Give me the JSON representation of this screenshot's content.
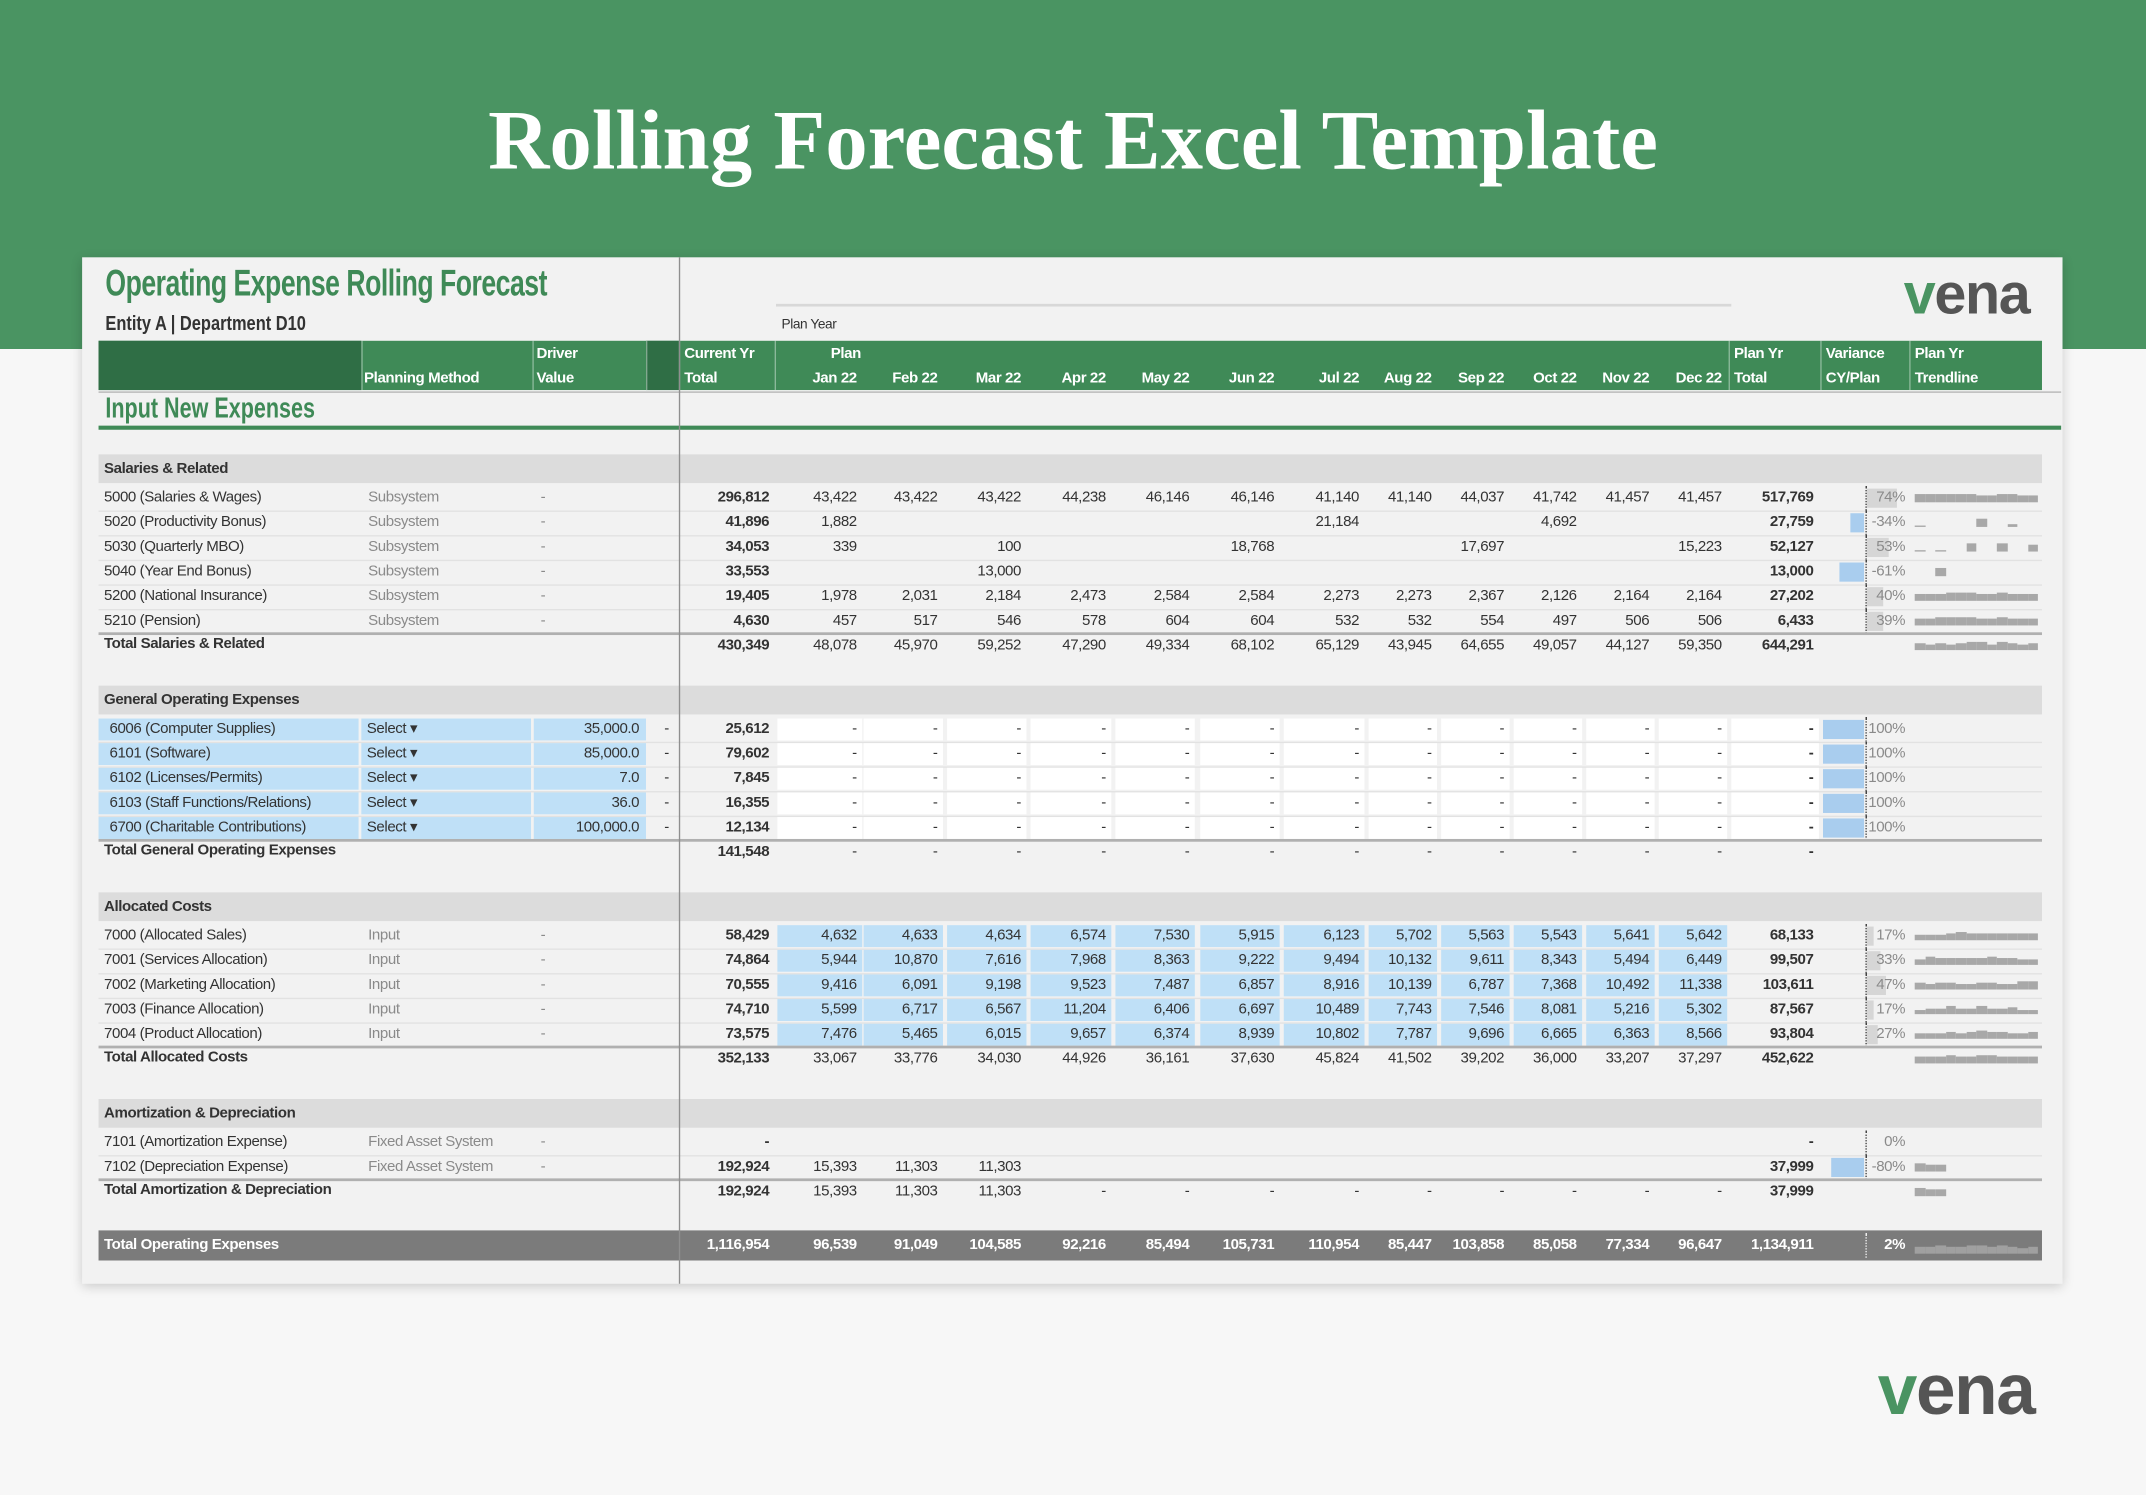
{
  "banner": {
    "title": "Rolling Forecast Excel Template"
  },
  "sheet": {
    "title": "Operating Expense Rolling Forecast",
    "subtitle": "Entity A | Department D10",
    "logo": "vena",
    "plan_year": "Plan Year",
    "section": "Input New Expenses",
    "header": {
      "planning_method": "Planning Method",
      "driver": [
        "Driver",
        "Value"
      ],
      "cy_total": [
        "Current Yr",
        "Total"
      ],
      "plan": "Plan",
      "months": [
        "Jan 22",
        "Feb 22",
        "Mar 22",
        "Apr 22",
        "May 22",
        "Jun 22",
        "Jul 22",
        "Aug 22",
        "Sep 22",
        "Oct 22",
        "Nov 22",
        "Dec 22"
      ],
      "plan_total": [
        "Plan Yr",
        "Total"
      ],
      "variance": [
        "Variance",
        "CY/Plan"
      ],
      "trendline": [
        "Plan Yr",
        "Trendline"
      ]
    },
    "groups": [
      {
        "name": "Salaries & Related",
        "rows": [
          {
            "account": "5000 (Salaries & Wages)",
            "method": "Subsystem",
            "driver": "-",
            "cy": "296,812",
            "months": [
              "43,422",
              "43,422",
              "43,422",
              "44,238",
              "46,146",
              "46,146",
              "41,140",
              "41,140",
              "44,037",
              "41,742",
              "41,457",
              "41,457"
            ],
            "plan": "517,769",
            "variance": "74%"
          },
          {
            "account": "5020 (Productivity Bonus)",
            "method": "Subsystem",
            "driver": "-",
            "cy": "41,896",
            "months": [
              "1,882",
              null,
              null,
              null,
              null,
              null,
              "21,184",
              null,
              null,
              "4,692",
              null,
              null
            ],
            "plan": "27,759",
            "variance": "-34%"
          },
          {
            "account": "5030 (Quarterly MBO)",
            "method": "Subsystem",
            "driver": "-",
            "cy": "34,053",
            "months": [
              "339",
              null,
              "100",
              null,
              null,
              "18,768",
              null,
              null,
              "17,697",
              null,
              null,
              "15,223"
            ],
            "plan": "52,127",
            "variance": "53%"
          },
          {
            "account": "5040 (Year End Bonus)",
            "method": "Subsystem",
            "driver": "-",
            "cy": "33,553",
            "months": [
              null,
              null,
              "13,000",
              null,
              null,
              null,
              null,
              null,
              null,
              null,
              null,
              null
            ],
            "plan": "13,000",
            "variance": "-61%"
          },
          {
            "account": "5200 (National Insurance)",
            "method": "Subsystem",
            "driver": "-",
            "cy": "19,405",
            "months": [
              "1,978",
              "2,031",
              "2,184",
              "2,473",
              "2,584",
              "2,584",
              "2,273",
              "2,273",
              "2,367",
              "2,126",
              "2,164",
              "2,164"
            ],
            "plan": "27,202",
            "variance": "40%"
          },
          {
            "account": "5210 (Pension)",
            "method": "Subsystem",
            "driver": "-",
            "cy": "4,630",
            "months": [
              "457",
              "517",
              "546",
              "578",
              "604",
              "604",
              "532",
              "532",
              "554",
              "497",
              "506",
              "506"
            ],
            "plan": "6,433",
            "variance": "39%"
          }
        ],
        "total": {
          "label": "Total Salaries & Related",
          "cy": "430,349",
          "months": [
            "48,078",
            "45,970",
            "59,252",
            "47,290",
            "49,334",
            "68,102",
            "65,129",
            "43,945",
            "64,655",
            "49,057",
            "44,127",
            "59,350"
          ],
          "plan": "644,291"
        }
      },
      {
        "name": "General Operating Expenses",
        "rows": [
          {
            "account": "6006 (Computer Supplies)",
            "method": "Select ▾",
            "driver": "35,000.0",
            "flag": "-",
            "cy": "25,612",
            "months": [
              "-",
              "-",
              "-",
              "-",
              "-",
              "-",
              "-",
              "-",
              "-",
              "-",
              "-",
              "-"
            ],
            "plan": "-",
            "variance": "100%"
          },
          {
            "account": "6101 (Software)",
            "method": "Select ▾",
            "driver": "85,000.0",
            "flag": "-",
            "cy": "79,602",
            "months": [
              "-",
              "-",
              "-",
              "-",
              "-",
              "-",
              "-",
              "-",
              "-",
              "-",
              "-",
              "-"
            ],
            "plan": "-",
            "variance": "100%"
          },
          {
            "account": "6102 (Licenses/Permits)",
            "method": "Select ▾",
            "driver": "7.0",
            "flag": "-",
            "cy": "7,845",
            "months": [
              "-",
              "-",
              "-",
              "-",
              "-",
              "-",
              "-",
              "-",
              "-",
              "-",
              "-",
              "-"
            ],
            "plan": "-",
            "variance": "100%"
          },
          {
            "account": "6103 (Staff Functions/Relations)",
            "method": "Select ▾",
            "driver": "36.0",
            "flag": "-",
            "cy": "16,355",
            "months": [
              "-",
              "-",
              "-",
              "-",
              "-",
              "-",
              "-",
              "-",
              "-",
              "-",
              "-",
              "-"
            ],
            "plan": "-",
            "variance": "100%"
          },
          {
            "account": "6700 (Charitable Contributions)",
            "method": "Select ▾",
            "driver": "100,000.0",
            "flag": "-",
            "cy": "12,134",
            "months": [
              "-",
              "-",
              "-",
              "-",
              "-",
              "-",
              "-",
              "-",
              "-",
              "-",
              "-",
              "-"
            ],
            "plan": "-",
            "variance": "100%"
          }
        ],
        "total": {
          "label": "Total General Operating Expenses",
          "cy": "141,548",
          "months": [
            "-",
            "-",
            "-",
            "-",
            "-",
            "-",
            "-",
            "-",
            "-",
            "-",
            "-",
            "-"
          ],
          "plan": "-"
        }
      },
      {
        "name": "Allocated Costs",
        "rows": [
          {
            "account": "7000 (Allocated Sales)",
            "method": "Input",
            "driver": "-",
            "cy": "58,429",
            "months": [
              "4,632",
              "4,633",
              "4,634",
              "6,574",
              "7,530",
              "5,915",
              "6,123",
              "5,702",
              "5,563",
              "5,543",
              "5,641",
              "5,642"
            ],
            "plan": "68,133",
            "variance": "17%"
          },
          {
            "account": "7001 (Services Allocation)",
            "method": "Input",
            "driver": "-",
            "cy": "74,864",
            "months": [
              "5,944",
              "10,870",
              "7,616",
              "7,968",
              "8,363",
              "9,222",
              "9,494",
              "10,132",
              "9,611",
              "8,343",
              "5,494",
              "6,449"
            ],
            "plan": "99,507",
            "variance": "33%"
          },
          {
            "account": "7002 (Marketing Allocation)",
            "method": "Input",
            "driver": "-",
            "cy": "70,555",
            "months": [
              "9,416",
              "6,091",
              "9,198",
              "9,523",
              "7,487",
              "6,857",
              "8,916",
              "10,139",
              "6,787",
              "7,368",
              "10,492",
              "11,338"
            ],
            "plan": "103,611",
            "variance": "47%"
          },
          {
            "account": "7003 (Finance Allocation)",
            "method": "Input",
            "driver": "-",
            "cy": "74,710",
            "months": [
              "5,599",
              "6,717",
              "6,567",
              "11,204",
              "6,406",
              "6,697",
              "10,489",
              "7,743",
              "7,546",
              "8,081",
              "5,216",
              "5,302"
            ],
            "plan": "87,567",
            "variance": "17%"
          },
          {
            "account": "7004 (Product Allocation)",
            "method": "Input",
            "driver": "-",
            "cy": "73,575",
            "months": [
              "7,476",
              "5,465",
              "6,015",
              "9,657",
              "6,374",
              "8,939",
              "10,802",
              "7,787",
              "9,696",
              "6,665",
              "6,363",
              "8,566"
            ],
            "plan": "93,804",
            "variance": "27%"
          }
        ],
        "total": {
          "label": "Total Allocated Costs",
          "cy": "352,133",
          "months": [
            "33,067",
            "33,776",
            "34,030",
            "44,926",
            "36,161",
            "37,630",
            "45,824",
            "41,502",
            "39,202",
            "36,000",
            "33,207",
            "37,297"
          ],
          "plan": "452,622"
        }
      },
      {
        "name": "Amortization & Depreciation",
        "rows": [
          {
            "account": "7101 (Amortization Expense)",
            "method": "Fixed Asset System",
            "driver": "-",
            "cy": "-",
            "months": [
              null,
              null,
              null,
              null,
              null,
              null,
              null,
              null,
              null,
              null,
              null,
              null
            ],
            "plan": "-",
            "variance": "0%"
          },
          {
            "account": "7102 (Depreciation Expense)",
            "method": "Fixed Asset System",
            "driver": "-",
            "cy": "192,924",
            "months": [
              "15,393",
              "11,303",
              "11,303",
              null,
              null,
              null,
              null,
              null,
              null,
              null,
              null,
              null
            ],
            "plan": "37,999",
            "variance": "-80%"
          }
        ],
        "total": {
          "label": "Total Amortization & Depreciation",
          "cy": "192,924",
          "months": [
            "15,393",
            "11,303",
            "11,303",
            "-",
            "-",
            "-",
            "-",
            "-",
            "-",
            "-",
            "-",
            "-"
          ],
          "plan": "37,999"
        }
      }
    ],
    "grand_total": {
      "label": "Total Operating Expenses",
      "cy": "1,116,954",
      "months": [
        "96,539",
        "91,049",
        "104,585",
        "92,216",
        "85,494",
        "105,731",
        "110,954",
        "85,447",
        "103,858",
        "85,058",
        "77,334",
        "96,647"
      ],
      "plan": "1,134,911",
      "variance": "2%"
    }
  },
  "footer": {
    "logo": "vena"
  }
}
